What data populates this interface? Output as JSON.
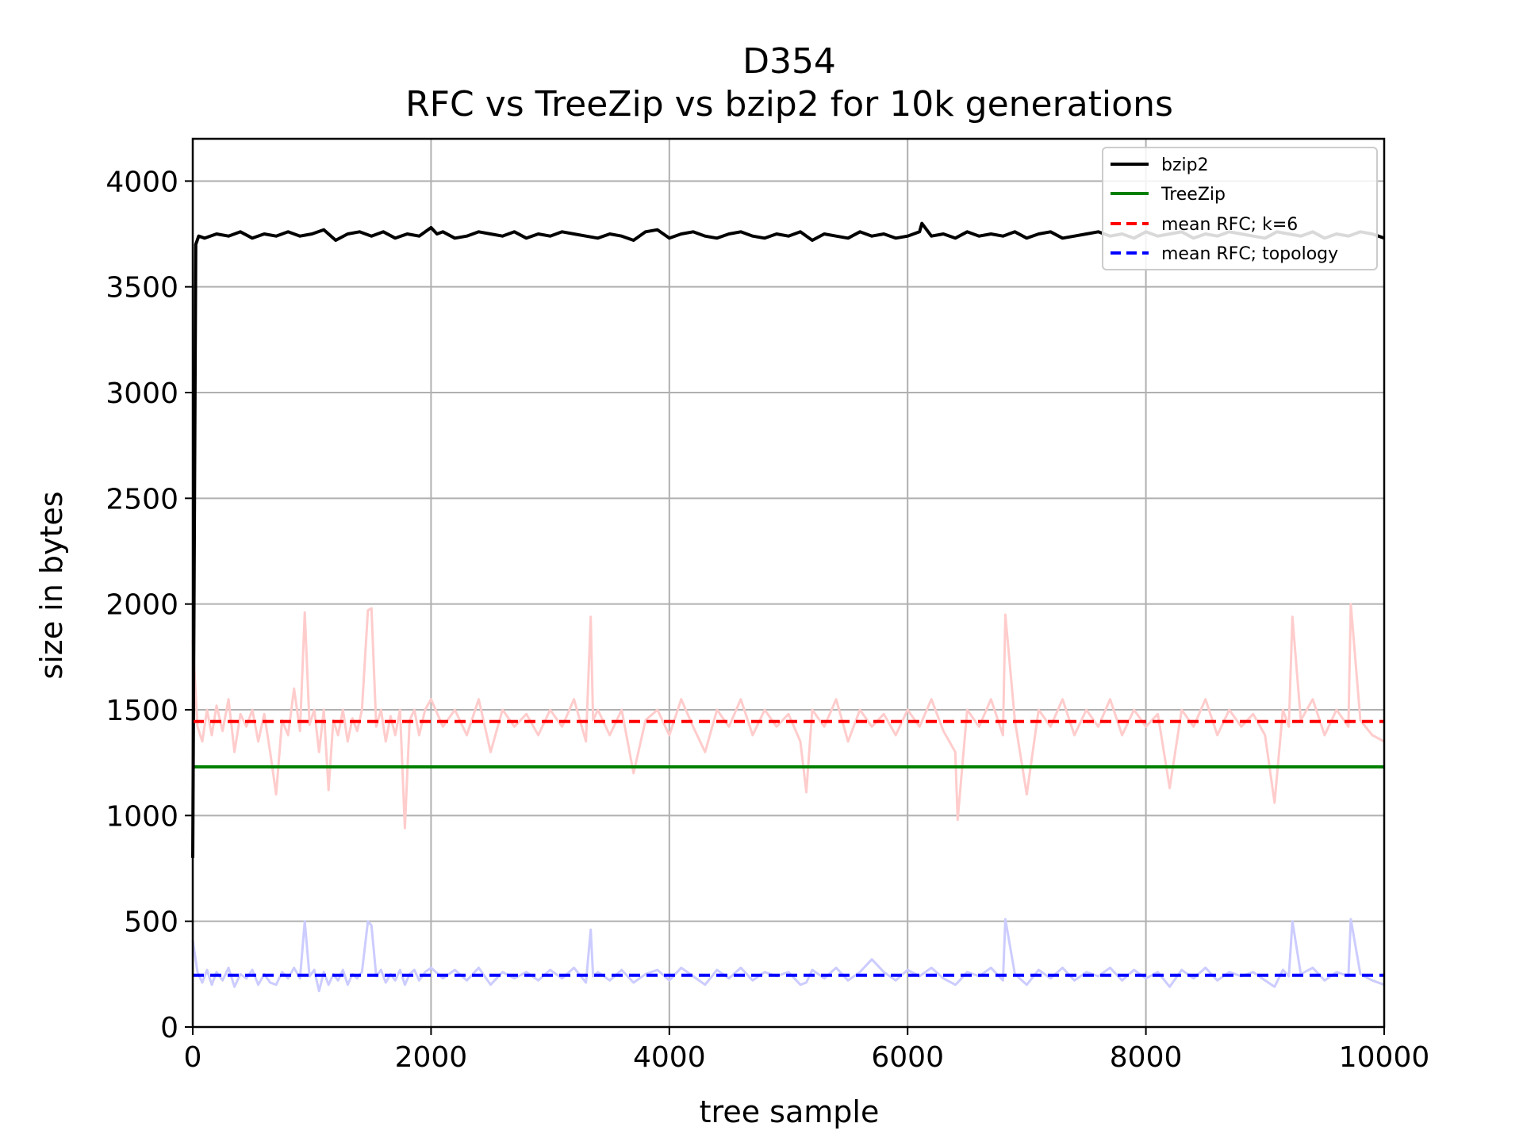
{
  "chart_data": {
    "type": "line",
    "title": "D354",
    "subtitle": "RFC vs TreeZip vs bzip2 for 10k generations",
    "xlabel": "tree sample",
    "ylabel": "size in bytes",
    "xlim": [
      0,
      10000
    ],
    "ylim": [
      0,
      4200
    ],
    "xticks": [
      0,
      2000,
      4000,
      6000,
      8000,
      10000
    ],
    "yticks": [
      0,
      500,
      1000,
      1500,
      2000,
      2500,
      3000,
      3500,
      4000
    ],
    "xtick_labels": [
      "0",
      "2000",
      "4000",
      "6000",
      "8000",
      "10000"
    ],
    "ytick_labels": [
      "0",
      "500",
      "1000",
      "1500",
      "2000",
      "2500",
      "3000",
      "3500",
      "4000"
    ],
    "grid": true,
    "legend_position": "top-right",
    "series": [
      {
        "name": "bzip2",
        "color": "#000000",
        "style": "solid",
        "x": [
          0,
          25,
          50,
          100,
          200,
          300,
          400,
          500,
          600,
          700,
          800,
          900,
          1000,
          1100,
          1200,
          1300,
          1400,
          1500,
          1600,
          1700,
          1800,
          1900,
          2000,
          2050,
          2100,
          2200,
          2300,
          2400,
          2500,
          2600,
          2700,
          2800,
          2900,
          3000,
          3100,
          3200,
          3300,
          3400,
          3500,
          3600,
          3700,
          3800,
          3900,
          4000,
          4100,
          4200,
          4300,
          4400,
          4500,
          4600,
          4700,
          4800,
          4900,
          5000,
          5100,
          5200,
          5300,
          5400,
          5500,
          5600,
          5700,
          5800,
          5900,
          6000,
          6100,
          6120,
          6200,
          6300,
          6400,
          6500,
          6600,
          6700,
          6800,
          6900,
          7000,
          7100,
          7200,
          7300,
          7400,
          7500,
          7600,
          7700,
          7800,
          7900,
          8000,
          8100,
          8200,
          8300,
          8400,
          8500,
          8600,
          8700,
          8800,
          8900,
          9000,
          9100,
          9200,
          9300,
          9400,
          9500,
          9600,
          9700,
          9800,
          9900,
          10000
        ],
        "values": [
          800,
          3700,
          3740,
          3730,
          3750,
          3740,
          3760,
          3730,
          3750,
          3740,
          3760,
          3740,
          3750,
          3770,
          3720,
          3750,
          3760,
          3740,
          3760,
          3730,
          3750,
          3740,
          3780,
          3750,
          3760,
          3730,
          3740,
          3760,
          3750,
          3740,
          3760,
          3730,
          3750,
          3740,
          3760,
          3750,
          3740,
          3730,
          3750,
          3740,
          3720,
          3760,
          3770,
          3730,
          3750,
          3760,
          3740,
          3730,
          3750,
          3760,
          3740,
          3730,
          3750,
          3740,
          3760,
          3720,
          3750,
          3740,
          3730,
          3760,
          3740,
          3750,
          3730,
          3740,
          3760,
          3800,
          3740,
          3750,
          3730,
          3760,
          3740,
          3750,
          3740,
          3760,
          3730,
          3750,
          3760,
          3730,
          3740,
          3750,
          3760,
          3740,
          3750,
          3730,
          3760,
          3740,
          3750,
          3760,
          3730,
          3750,
          3740,
          3760,
          3750,
          3740,
          3730,
          3760,
          3750,
          3740,
          3760,
          3730,
          3750,
          3740,
          3760,
          3750,
          3730
        ]
      },
      {
        "name": "TreeZip",
        "color": "#008000",
        "style": "solid",
        "x": [
          0,
          10000
        ],
        "values": [
          1230,
          1230
        ]
      },
      {
        "name": "mean RFC; k=6",
        "color": "#ff0000",
        "style": "dashed",
        "x": [
          0,
          10000
        ],
        "values": [
          1445,
          1445
        ]
      },
      {
        "name": "mean RFC; topology",
        "color": "#0000ff",
        "style": "dashed",
        "x": [
          0,
          10000
        ],
        "values": [
          245,
          245
        ]
      },
      {
        "color": "#ffcccc",
        "style": "solid",
        "x": [
          0,
          40,
          80,
          120,
          160,
          200,
          250,
          300,
          350,
          400,
          450,
          500,
          550,
          600,
          650,
          700,
          750,
          800,
          850,
          900,
          940,
          980,
          1020,
          1060,
          1100,
          1140,
          1180,
          1220,
          1260,
          1300,
          1340,
          1380,
          1420,
          1470,
          1500,
          1540,
          1580,
          1620,
          1660,
          1700,
          1740,
          1780,
          1820,
          1860,
          1900,
          1950,
          2000,
          2100,
          2200,
          2300,
          2400,
          2500,
          2600,
          2700,
          2800,
          2900,
          3000,
          3100,
          3200,
          3300,
          3340,
          3360,
          3400,
          3500,
          3600,
          3700,
          3800,
          3900,
          4000,
          4100,
          4200,
          4300,
          4400,
          4500,
          4600,
          4700,
          4800,
          4900,
          5000,
          5100,
          5150,
          5200,
          5300,
          5400,
          5500,
          5600,
          5700,
          5800,
          5900,
          6000,
          6100,
          6200,
          6300,
          6400,
          6420,
          6500,
          6600,
          6700,
          6800,
          6820,
          6900,
          7000,
          7100,
          7200,
          7300,
          7400,
          7500,
          7600,
          7700,
          7800,
          7900,
          8000,
          8100,
          8200,
          8300,
          8400,
          8500,
          8600,
          8700,
          8800,
          8900,
          9000,
          9080,
          9150,
          9200,
          9230,
          9300,
          9400,
          9500,
          9600,
          9700,
          9720,
          9800,
          9900,
          10000
        ],
        "values": [
          1830,
          1420,
          1350,
          1500,
          1380,
          1520,
          1400,
          1550,
          1300,
          1480,
          1420,
          1500,
          1350,
          1480,
          1300,
          1100,
          1450,
          1380,
          1600,
          1400,
          1960,
          1430,
          1500,
          1300,
          1500,
          1120,
          1450,
          1380,
          1500,
          1350,
          1460,
          1400,
          1500,
          1970,
          1980,
          1420,
          1500,
          1350,
          1470,
          1380,
          1500,
          940,
          1450,
          1500,
          1380,
          1500,
          1550,
          1420,
          1500,
          1380,
          1550,
          1300,
          1500,
          1420,
          1480,
          1380,
          1500,
          1420,
          1550,
          1350,
          1940,
          1450,
          1500,
          1380,
          1500,
          1200,
          1450,
          1500,
          1380,
          1550,
          1420,
          1300,
          1500,
          1420,
          1550,
          1380,
          1500,
          1420,
          1480,
          1350,
          1110,
          1500,
          1420,
          1550,
          1350,
          1500,
          1420,
          1480,
          1380,
          1500,
          1420,
          1550,
          1400,
          1300,
          980,
          1500,
          1420,
          1550,
          1380,
          1950,
          1450,
          1100,
          1500,
          1420,
          1550,
          1380,
          1500,
          1420,
          1550,
          1380,
          1500,
          1420,
          1480,
          1130,
          1500,
          1420,
          1550,
          1380,
          1500,
          1420,
          1480,
          1380,
          1060,
          1500,
          1420,
          1940,
          1450,
          1550,
          1380,
          1500,
          1420,
          2000,
          1450,
          1380,
          1350
        ]
      },
      {
        "color": "#ccccff",
        "style": "solid",
        "x": [
          0,
          40,
          80,
          120,
          160,
          200,
          250,
          300,
          350,
          400,
          450,
          500,
          550,
          600,
          650,
          700,
          750,
          800,
          850,
          900,
          940,
          980,
          1020,
          1060,
          1100,
          1140,
          1180,
          1220,
          1260,
          1300,
          1340,
          1380,
          1420,
          1470,
          1500,
          1540,
          1580,
          1620,
          1660,
          1700,
          1740,
          1780,
          1820,
          1860,
          1900,
          1950,
          2000,
          2100,
          2200,
          2300,
          2400,
          2500,
          2600,
          2700,
          2800,
          2900,
          3000,
          3100,
          3200,
          3300,
          3340,
          3360,
          3400,
          3500,
          3600,
          3700,
          3800,
          3900,
          4000,
          4100,
          4200,
          4300,
          4400,
          4500,
          4600,
          4700,
          4800,
          4900,
          5000,
          5100,
          5150,
          5200,
          5300,
          5400,
          5500,
          5600,
          5700,
          5800,
          5900,
          6000,
          6100,
          6200,
          6300,
          6400,
          6420,
          6500,
          6600,
          6700,
          6800,
          6820,
          6900,
          7000,
          7100,
          7200,
          7300,
          7400,
          7500,
          7600,
          7700,
          7800,
          7900,
          8000,
          8100,
          8200,
          8300,
          8400,
          8500,
          8600,
          8700,
          8800,
          8900,
          9000,
          9080,
          9150,
          9200,
          9230,
          9300,
          9400,
          9500,
          9600,
          9700,
          9720,
          9800,
          9900,
          10000
        ],
        "values": [
          410,
          260,
          210,
          270,
          200,
          260,
          220,
          280,
          190,
          250,
          230,
          270,
          200,
          250,
          210,
          200,
          260,
          230,
          280,
          230,
          500,
          240,
          270,
          170,
          260,
          200,
          250,
          220,
          270,
          200,
          250,
          230,
          260,
          500,
          480,
          240,
          270,
          210,
          250,
          220,
          270,
          200,
          250,
          270,
          220,
          260,
          280,
          230,
          270,
          220,
          280,
          200,
          260,
          230,
          260,
          220,
          270,
          230,
          280,
          210,
          460,
          240,
          260,
          220,
          270,
          210,
          250,
          270,
          220,
          280,
          240,
          200,
          270,
          230,
          280,
          220,
          260,
          240,
          260,
          200,
          210,
          270,
          230,
          280,
          220,
          260,
          320,
          260,
          220,
          270,
          240,
          280,
          230,
          200,
          210,
          260,
          240,
          280,
          220,
          510,
          250,
          200,
          270,
          230,
          280,
          220,
          260,
          240,
          280,
          220,
          270,
          230,
          260,
          190,
          270,
          230,
          280,
          220,
          260,
          240,
          260,
          220,
          190,
          270,
          240,
          500,
          250,
          280,
          220,
          260,
          240,
          510,
          250,
          220,
          200
        ]
      }
    ]
  }
}
